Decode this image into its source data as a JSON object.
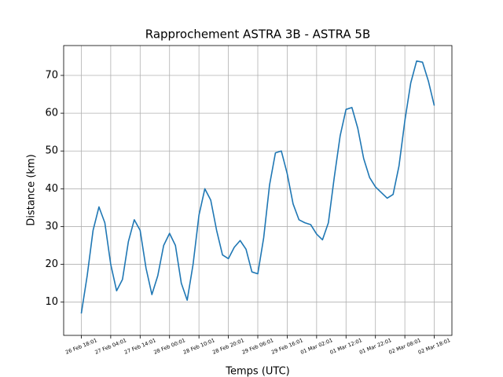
{
  "chart_data": {
    "type": "line",
    "title": "Rapprochement ASTRA 3B - ASTRA 5B",
    "xlabel": "Temps (UTC)",
    "ylabel": "Distance (km)",
    "x": [
      "26 Feb 18:01",
      "26 Feb 20:01",
      "26 Feb 22:01",
      "27 Feb 00:01",
      "27 Feb 02:01",
      "27 Feb 04:01",
      "27 Feb 06:01",
      "27 Feb 08:01",
      "27 Feb 10:01",
      "27 Feb 12:01",
      "27 Feb 14:01",
      "27 Feb 16:01",
      "27 Feb 18:01",
      "27 Feb 20:01",
      "27 Feb 22:01",
      "28 Feb 00:01",
      "28 Feb 02:01",
      "28 Feb 04:01",
      "28 Feb 06:01",
      "28 Feb 08:01",
      "28 Feb 10:01",
      "28 Feb 12:01",
      "28 Feb 14:01",
      "28 Feb 16:01",
      "28 Feb 18:01",
      "28 Feb 20:01",
      "28 Feb 22:01",
      "29 Feb 00:01",
      "29 Feb 02:01",
      "29 Feb 04:01",
      "29 Feb 06:01",
      "29 Feb 08:01",
      "29 Feb 10:01",
      "29 Feb 12:01",
      "29 Feb 14:01",
      "29 Feb 16:01",
      "29 Feb 18:01",
      "29 Feb 20:01",
      "29 Feb 22:01",
      "01 Mar 00:01",
      "01 Mar 02:01",
      "01 Mar 04:01",
      "01 Mar 06:01",
      "01 Mar 08:01",
      "01 Mar 10:01",
      "01 Mar 12:01",
      "01 Mar 14:01",
      "01 Mar 16:01",
      "01 Mar 18:01",
      "01 Mar 20:01",
      "01 Mar 22:01",
      "02 Mar 00:01",
      "02 Mar 02:01",
      "02 Mar 04:01",
      "02 Mar 06:01",
      "02 Mar 08:01",
      "02 Mar 10:01",
      "02 Mar 12:01",
      "02 Mar 14:01",
      "02 Mar 16:01",
      "02 Mar 18:01"
    ],
    "series": [
      {
        "name": "Distance",
        "color": "#1f77b4",
        "values": [
          7,
          17,
          29,
          35.2,
          31,
          20,
          13,
          16,
          26,
          31.8,
          29,
          19,
          12,
          17,
          25,
          28.2,
          25,
          15,
          10.5,
          20,
          33,
          40,
          37,
          29,
          22.5,
          21.5,
          24.5,
          26.3,
          24,
          18,
          17.5,
          27,
          41,
          49.5,
          50,
          44,
          36,
          31.8,
          31,
          30.5,
          28,
          26.5,
          31,
          43,
          54,
          61,
          61.5,
          56,
          48,
          43,
          40.5,
          39,
          37.5,
          38.5,
          46,
          58,
          68,
          73.8,
          73.5,
          68.5,
          62
        ]
      }
    ],
    "xlim": [
      "26 Feb 12:01",
      "03 Mar 00:01"
    ],
    "xticks": [
      "26 Feb 18:01",
      "27 Feb 04:01",
      "27 Feb 14:01",
      "28 Feb 00:01",
      "28 Feb 10:01",
      "28 Feb 20:01",
      "29 Feb 06:01",
      "29 Feb 16:01",
      "01 Mar 02:01",
      "01 Mar 12:01",
      "01 Mar 22:01",
      "02 Mar 08:01",
      "02 Mar 18:01"
    ],
    "ylim": [
      1.2,
      77.9
    ],
    "yticks": [
      10,
      20,
      30,
      40,
      50,
      60,
      70
    ],
    "grid": true
  }
}
